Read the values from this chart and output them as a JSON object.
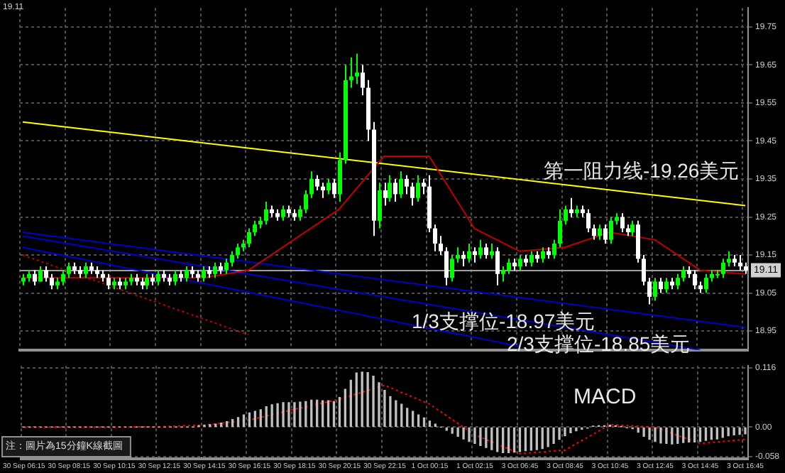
{
  "chart_data": [
    {
      "type": "candlestick",
      "categories": [
        "30 Sep 06:15",
        null,
        null,
        null,
        null,
        null,
        null,
        null,
        "30 Sep 08:15",
        null,
        null,
        null,
        null,
        null,
        null,
        null,
        "30 Sep 10:15",
        null,
        null,
        null,
        null,
        null,
        null,
        null,
        "30 Sep 12:15",
        null,
        null,
        null,
        null,
        null,
        null,
        null,
        "30 Sep 14:15",
        null,
        null,
        null,
        null,
        null,
        null,
        null,
        "30 Sep 16:15",
        null,
        null,
        null,
        null,
        null,
        null,
        null,
        "30 Sep 18:15",
        null,
        null,
        null,
        null,
        null,
        null,
        null,
        "30 Sep 20:15",
        null,
        null,
        null,
        null,
        null,
        null,
        null,
        "30 Sep 22:15",
        null,
        null,
        null,
        null,
        null,
        null,
        null,
        "1 Oct 00:15",
        null,
        null,
        null,
        null,
        null,
        null,
        null,
        "1 Oct 02:15",
        null,
        null,
        null,
        null,
        null,
        null,
        null,
        "3 Oct 06:45",
        null,
        null,
        null,
        null,
        null,
        null,
        null,
        "3 Oct 08:45",
        null,
        null,
        null,
        null,
        null,
        null,
        null,
        "3 Oct 10:45",
        null,
        null,
        null,
        null,
        null,
        null,
        null,
        "3 Oct 12:45",
        null,
        null,
        null,
        null,
        null,
        null,
        null,
        "3 Oct 14:45",
        null,
        null,
        null,
        null,
        null,
        null,
        null,
        "3 Oct 16:45"
      ],
      "ohlc": [
        [
          19.08,
          19.1,
          19.07,
          19.09
        ],
        [
          19.09,
          19.11,
          19.08,
          19.1
        ],
        [
          19.1,
          19.11,
          19.07,
          19.08
        ],
        [
          19.08,
          19.12,
          19.08,
          19.11
        ],
        [
          19.11,
          19.12,
          19.08,
          19.09
        ],
        [
          19.09,
          19.1,
          19.06,
          19.07
        ],
        [
          19.07,
          19.09,
          19.06,
          19.08
        ],
        [
          19.08,
          19.11,
          19.07,
          19.1
        ],
        [
          19.1,
          19.13,
          19.09,
          19.12
        ],
        [
          19.12,
          19.13,
          19.1,
          19.11
        ],
        [
          19.11,
          19.12,
          19.09,
          19.1
        ],
        [
          19.1,
          19.13,
          19.09,
          19.12
        ],
        [
          19.12,
          19.13,
          19.1,
          19.11
        ],
        [
          19.11,
          19.12,
          19.09,
          19.1
        ],
        [
          19.1,
          19.11,
          19.08,
          19.09
        ],
        [
          19.09,
          19.1,
          19.06,
          19.07
        ],
        [
          19.07,
          19.09,
          19.06,
          19.08
        ],
        [
          19.08,
          19.09,
          19.06,
          19.07
        ],
        [
          19.07,
          19.09,
          19.06,
          19.08
        ],
        [
          19.08,
          19.1,
          19.07,
          19.09
        ],
        [
          19.09,
          19.1,
          19.07,
          19.08
        ],
        [
          19.08,
          19.09,
          19.06,
          19.07
        ],
        [
          19.07,
          19.1,
          19.06,
          19.09
        ],
        [
          19.09,
          19.1,
          19.07,
          19.08
        ],
        [
          19.08,
          19.11,
          19.07,
          19.1
        ],
        [
          19.1,
          19.11,
          19.08,
          19.09
        ],
        [
          19.09,
          19.1,
          19.07,
          19.08
        ],
        [
          19.08,
          19.11,
          19.07,
          19.1
        ],
        [
          19.1,
          19.11,
          19.08,
          19.09
        ],
        [
          19.09,
          19.12,
          19.08,
          19.11
        ],
        [
          19.11,
          19.12,
          19.09,
          19.1
        ],
        [
          19.1,
          19.11,
          19.08,
          19.09
        ],
        [
          19.09,
          19.12,
          19.08,
          19.11
        ],
        [
          19.11,
          19.12,
          19.09,
          19.1
        ],
        [
          19.1,
          19.13,
          19.09,
          19.12
        ],
        [
          19.12,
          19.13,
          19.1,
          19.11
        ],
        [
          19.11,
          19.14,
          19.1,
          19.13
        ],
        [
          19.13,
          19.16,
          19.12,
          19.15
        ],
        [
          19.15,
          19.18,
          19.14,
          19.17
        ],
        [
          19.17,
          19.19,
          19.16,
          19.18
        ],
        [
          19.18,
          19.22,
          19.17,
          19.21
        ],
        [
          19.21,
          19.24,
          19.2,
          19.23
        ],
        [
          19.23,
          19.25,
          19.22,
          19.24
        ],
        [
          19.24,
          19.29,
          19.23,
          19.27
        ],
        [
          19.27,
          19.28,
          19.25,
          19.26
        ],
        [
          19.26,
          19.27,
          19.24,
          19.25
        ],
        [
          19.25,
          19.28,
          19.24,
          19.27
        ],
        [
          19.27,
          19.28,
          19.25,
          19.26
        ],
        [
          19.26,
          19.27,
          19.24,
          19.25
        ],
        [
          19.25,
          19.28,
          19.24,
          19.27
        ],
        [
          19.27,
          19.32,
          19.26,
          19.31
        ],
        [
          19.31,
          19.37,
          19.3,
          19.35
        ],
        [
          19.35,
          19.36,
          19.32,
          19.33
        ],
        [
          19.33,
          19.34,
          19.3,
          19.32
        ],
        [
          19.32,
          19.35,
          19.31,
          19.34
        ],
        [
          19.34,
          19.35,
          19.3,
          19.31
        ],
        [
          19.31,
          19.42,
          19.29,
          19.4
        ],
        [
          19.4,
          19.65,
          19.39,
          19.61
        ],
        [
          19.61,
          19.67,
          19.59,
          19.62
        ],
        [
          19.62,
          19.68,
          19.6,
          19.63
        ],
        [
          19.63,
          19.65,
          19.57,
          19.59
        ],
        [
          19.59,
          19.61,
          19.45,
          19.48
        ],
        [
          19.48,
          19.5,
          19.2,
          19.24
        ],
        [
          19.24,
          19.34,
          19.22,
          19.32
        ],
        [
          19.32,
          19.34,
          19.28,
          19.3
        ],
        [
          19.3,
          19.36,
          19.29,
          19.34
        ],
        [
          19.34,
          19.35,
          19.29,
          19.31
        ],
        [
          19.31,
          19.37,
          19.3,
          19.35
        ],
        [
          19.35,
          19.36,
          19.31,
          19.33
        ],
        [
          19.33,
          19.34,
          19.28,
          19.3
        ],
        [
          19.3,
          19.36,
          19.29,
          19.34
        ],
        [
          19.34,
          19.35,
          19.31,
          19.33
        ],
        [
          19.33,
          19.36,
          19.21,
          19.22
        ],
        [
          19.22,
          19.23,
          19.16,
          19.18
        ],
        [
          19.18,
          19.2,
          19.15,
          19.16
        ],
        [
          19.16,
          19.17,
          19.07,
          19.09
        ],
        [
          19.09,
          19.15,
          19.08,
          19.14
        ],
        [
          19.14,
          19.17,
          19.13,
          19.15
        ],
        [
          19.15,
          19.16,
          19.12,
          19.14
        ],
        [
          19.14,
          19.18,
          19.13,
          19.16
        ],
        [
          19.16,
          19.17,
          19.13,
          19.15
        ],
        [
          19.15,
          19.19,
          19.14,
          19.17
        ],
        [
          19.17,
          19.18,
          19.14,
          19.15
        ],
        [
          19.15,
          19.18,
          19.14,
          19.16
        ],
        [
          19.16,
          19.17,
          19.07,
          19.1
        ],
        [
          19.1,
          19.12,
          19.08,
          19.11
        ],
        [
          19.11,
          19.14,
          19.1,
          19.13
        ],
        [
          19.13,
          19.14,
          19.11,
          19.12
        ],
        [
          19.12,
          19.15,
          19.11,
          19.14
        ],
        [
          19.14,
          19.15,
          19.12,
          19.13
        ],
        [
          19.13,
          19.16,
          19.12,
          19.15
        ],
        [
          19.15,
          19.16,
          19.13,
          19.14
        ],
        [
          19.14,
          19.17,
          19.13,
          19.16
        ],
        [
          19.16,
          19.17,
          19.14,
          19.15
        ],
        [
          19.15,
          19.19,
          19.14,
          19.18
        ],
        [
          19.18,
          19.27,
          19.17,
          19.24
        ],
        [
          19.24,
          19.28,
          19.23,
          19.27
        ],
        [
          19.27,
          19.3,
          19.25,
          19.26
        ],
        [
          19.26,
          19.28,
          19.25,
          19.27
        ],
        [
          19.27,
          19.28,
          19.25,
          19.26
        ],
        [
          19.26,
          19.27,
          19.21,
          19.22
        ],
        [
          19.22,
          19.23,
          19.19,
          19.2
        ],
        [
          19.2,
          19.23,
          19.19,
          19.22
        ],
        [
          19.22,
          19.23,
          19.18,
          19.19
        ],
        [
          19.19,
          19.25,
          19.18,
          19.24
        ],
        [
          19.24,
          19.26,
          19.23,
          19.25
        ],
        [
          19.25,
          19.26,
          19.21,
          19.22
        ],
        [
          19.22,
          19.23,
          19.2,
          19.21
        ],
        [
          19.21,
          19.24,
          19.2,
          19.23
        ],
        [
          19.23,
          19.24,
          19.13,
          19.14
        ],
        [
          19.14,
          19.15,
          19.07,
          19.08
        ],
        [
          19.08,
          19.09,
          19.02,
          19.04
        ],
        [
          19.04,
          19.09,
          19.03,
          19.08
        ],
        [
          19.08,
          19.09,
          19.05,
          19.06
        ],
        [
          19.06,
          19.09,
          19.05,
          19.08
        ],
        [
          19.08,
          19.09,
          19.06,
          19.07
        ],
        [
          19.07,
          19.1,
          19.06,
          19.09
        ],
        [
          19.09,
          19.12,
          19.08,
          19.11
        ],
        [
          19.11,
          19.12,
          19.09,
          19.1
        ],
        [
          19.1,
          19.11,
          19.06,
          19.07
        ],
        [
          19.07,
          19.08,
          19.05,
          19.06
        ],
        [
          19.06,
          19.1,
          19.05,
          19.09
        ],
        [
          19.09,
          19.11,
          19.08,
          19.1
        ],
        [
          19.1,
          19.11,
          19.09,
          19.1
        ],
        [
          19.1,
          19.14,
          19.09,
          19.13
        ],
        [
          19.13,
          19.16,
          19.12,
          19.14
        ],
        [
          19.14,
          19.15,
          19.12,
          19.13
        ],
        [
          19.13,
          19.15,
          19.11,
          19.12
        ],
        [
          19.12,
          19.13,
          19.1,
          19.11
        ]
      ],
      "series": [
        {
          "type": "line",
          "color": "#c00000",
          "x": [
            "30 Sep 06:15",
            "30 Sep 08:15",
            "30 Sep 10:15",
            "30 Sep 12:15",
            "30 Sep 14:15",
            "30 Sep 16:15",
            "30 Sep 18:15",
            "30 Sep 20:15",
            "30 Sep 22:15",
            "1 Oct 00:15",
            "1 Oct 02:15",
            "3 Oct 06:45",
            "3 Oct 08:45",
            "3 Oct 10:45",
            "3 Oct 12:45",
            "3 Oct 14:45",
            "3 Oct 16:45"
          ],
          "values": [
            19.09,
            19.09,
            19.09,
            19.09,
            19.09,
            19.11,
            19.19,
            19.27,
            19.41,
            19.41,
            19.22,
            19.16,
            19.17,
            19.21,
            19.19,
            19.11,
            19.1
          ]
        },
        {
          "type": "line",
          "color": "#ffff00",
          "x": [
            "30 Sep 06:15",
            "3 Oct 16:45"
          ],
          "values": [
            19.5,
            19.28
          ]
        },
        {
          "type": "line",
          "color": "#0000c8",
          "x": [
            "30 Sep 06:15",
            "3 Oct 16:45"
          ],
          "values": [
            19.21,
            18.96
          ]
        },
        {
          "type": "line",
          "color": "#0000c8",
          "x": [
            "30 Sep 06:15",
            "3 Oct 14:45"
          ],
          "values": [
            19.2,
            18.9
          ]
        },
        {
          "type": "line",
          "color": "#0000c8",
          "x": [
            "30 Sep 06:15",
            "3 Oct 06:45"
          ],
          "values": [
            19.17,
            18.91
          ]
        },
        {
          "type": "line",
          "color": "#c00000",
          "line_style": "dotted",
          "x": [
            "30 Sep 06:15",
            "30 Sep 16:15"
          ],
          "values": [
            19.15,
            18.94
          ]
        }
      ],
      "ylim": [
        18.9,
        19.8
      ],
      "yticks": [
        19.75,
        19.65,
        19.55,
        19.45,
        19.35,
        19.25,
        19.15,
        19.05,
        18.95
      ],
      "ref_lines": [
        {
          "axis": "y",
          "value": 19.11,
          "label": "19.11",
          "color": "#a0a0a0"
        }
      ],
      "annotations": [
        "第一阻力线-19.26美元",
        "1/3支撑位-18.97美元",
        "2/3支撑位-18.85美元",
        "19.11"
      ],
      "grid": true,
      "tick_labels": "y"
    },
    {
      "type": "bar",
      "categories": [
        "30 Sep 06:15",
        null,
        null,
        null,
        null,
        null,
        null,
        null,
        "30 Sep 08:15",
        null,
        null,
        null,
        null,
        null,
        null,
        null,
        "30 Sep 10:15",
        null,
        null,
        null,
        null,
        null,
        null,
        null,
        "30 Sep 12:15",
        null,
        null,
        null,
        null,
        null,
        null,
        null,
        "30 Sep 14:15",
        null,
        null,
        null,
        null,
        null,
        null,
        null,
        "30 Sep 16:15",
        null,
        null,
        null,
        null,
        null,
        null,
        null,
        "30 Sep 18:15",
        null,
        null,
        null,
        null,
        null,
        null,
        null,
        "30 Sep 20:15",
        null,
        null,
        null,
        null,
        null,
        null,
        null,
        "30 Sep 22:15",
        null,
        null,
        null,
        null,
        null,
        null,
        null,
        "1 Oct 00:15",
        null,
        null,
        null,
        null,
        null,
        null,
        null,
        "1 Oct 02:15",
        null,
        null,
        null,
        null,
        null,
        null,
        null,
        "3 Oct 06:45",
        null,
        null,
        null,
        null,
        null,
        null,
        null,
        "3 Oct 08:45",
        null,
        null,
        null,
        null,
        null,
        null,
        null,
        "3 Oct 10:45",
        null,
        null,
        null,
        null,
        null,
        null,
        null,
        "3 Oct 12:45",
        null,
        null,
        null,
        null,
        null,
        null,
        null,
        "3 Oct 14:45",
        null,
        null,
        null,
        null,
        null,
        null,
        null,
        "3 Oct 16:45"
      ],
      "series": [
        {
          "color": "#c0c0c0",
          "values": [
            0,
            0,
            0,
            0,
            0,
            0,
            0,
            0,
            0,
            0,
            0,
            0,
            0,
            0,
            0,
            0,
            0,
            0,
            0,
            0,
            0,
            0,
            0,
            0,
            0,
            0,
            0,
            0,
            0,
            0,
            0,
            0.003,
            0.004,
            0.005,
            0.006,
            0.008,
            0.011,
            0.015,
            0.019,
            0.024,
            0.028,
            0.031,
            0.034,
            0.04,
            0.044,
            0.046,
            0.048,
            0.048,
            0.048,
            0.049,
            0.05,
            0.053,
            0.053,
            0.052,
            0.052,
            0.05,
            0.058,
            0.074,
            0.092,
            0.106,
            0.108,
            0.107,
            0.1,
            0.087,
            0.072,
            0.06,
            0.052,
            0.045,
            0.037,
            0.031,
            0.024,
            0.018,
            0.012,
            0.006,
            0,
            -0.006,
            -0.012,
            -0.018,
            -0.023,
            -0.028,
            -0.032,
            -0.036,
            -0.04,
            -0.044,
            -0.048,
            -0.05,
            -0.05,
            -0.049,
            -0.048,
            -0.046,
            -0.045,
            -0.044,
            -0.042,
            -0.038,
            -0.032,
            -0.024,
            -0.017,
            -0.011,
            -0.007,
            -0.004,
            -0.002,
            0.002,
            0.003,
            0.003,
            0.004,
            0.003,
            0.001,
            -0.001,
            -0.003,
            -0.01,
            -0.018,
            -0.024,
            -0.028,
            -0.031,
            -0.032,
            -0.033,
            -0.032,
            -0.03,
            -0.029,
            -0.029,
            -0.028,
            -0.026,
            -0.024,
            -0.023,
            -0.02,
            -0.017,
            -0.015,
            -0.014,
            -0.013
          ]
        },
        {
          "type": "line",
          "color": "#ff0000",
          "line_style": "dotted",
          "x": [
            "30 Sep 06:15",
            "30 Sep 08:15",
            "30 Sep 10:15",
            "30 Sep 12:15",
            "30 Sep 14:15",
            "30 Sep 16:15",
            "30 Sep 18:15",
            "30 Sep 20:15",
            "30 Sep 22:15",
            "1 Oct 00:15",
            "1 Oct 02:15",
            "3 Oct 06:45",
            "3 Oct 08:45",
            "3 Oct 10:45",
            "3 Oct 12:45",
            "3 Oct 14:45",
            "3 Oct 16:45"
          ],
          "values": [
            0,
            0,
            0,
            0.001,
            0.004,
            0.014,
            0.035,
            0.055,
            0.082,
            0.045,
            -0.015,
            -0.052,
            -0.045,
            0.005,
            0,
            -0.032,
            -0.024
          ]
        }
      ],
      "ylim": [
        -0.062,
        0.12
      ],
      "yticks": [
        0.116,
        {
          "value": 0,
          "label": "0.00"
        },
        -0.058
      ],
      "annotations": [
        "MACD",
        "注：圖片為15分鐘K線截圖"
      ],
      "grid": true
    }
  ]
}
